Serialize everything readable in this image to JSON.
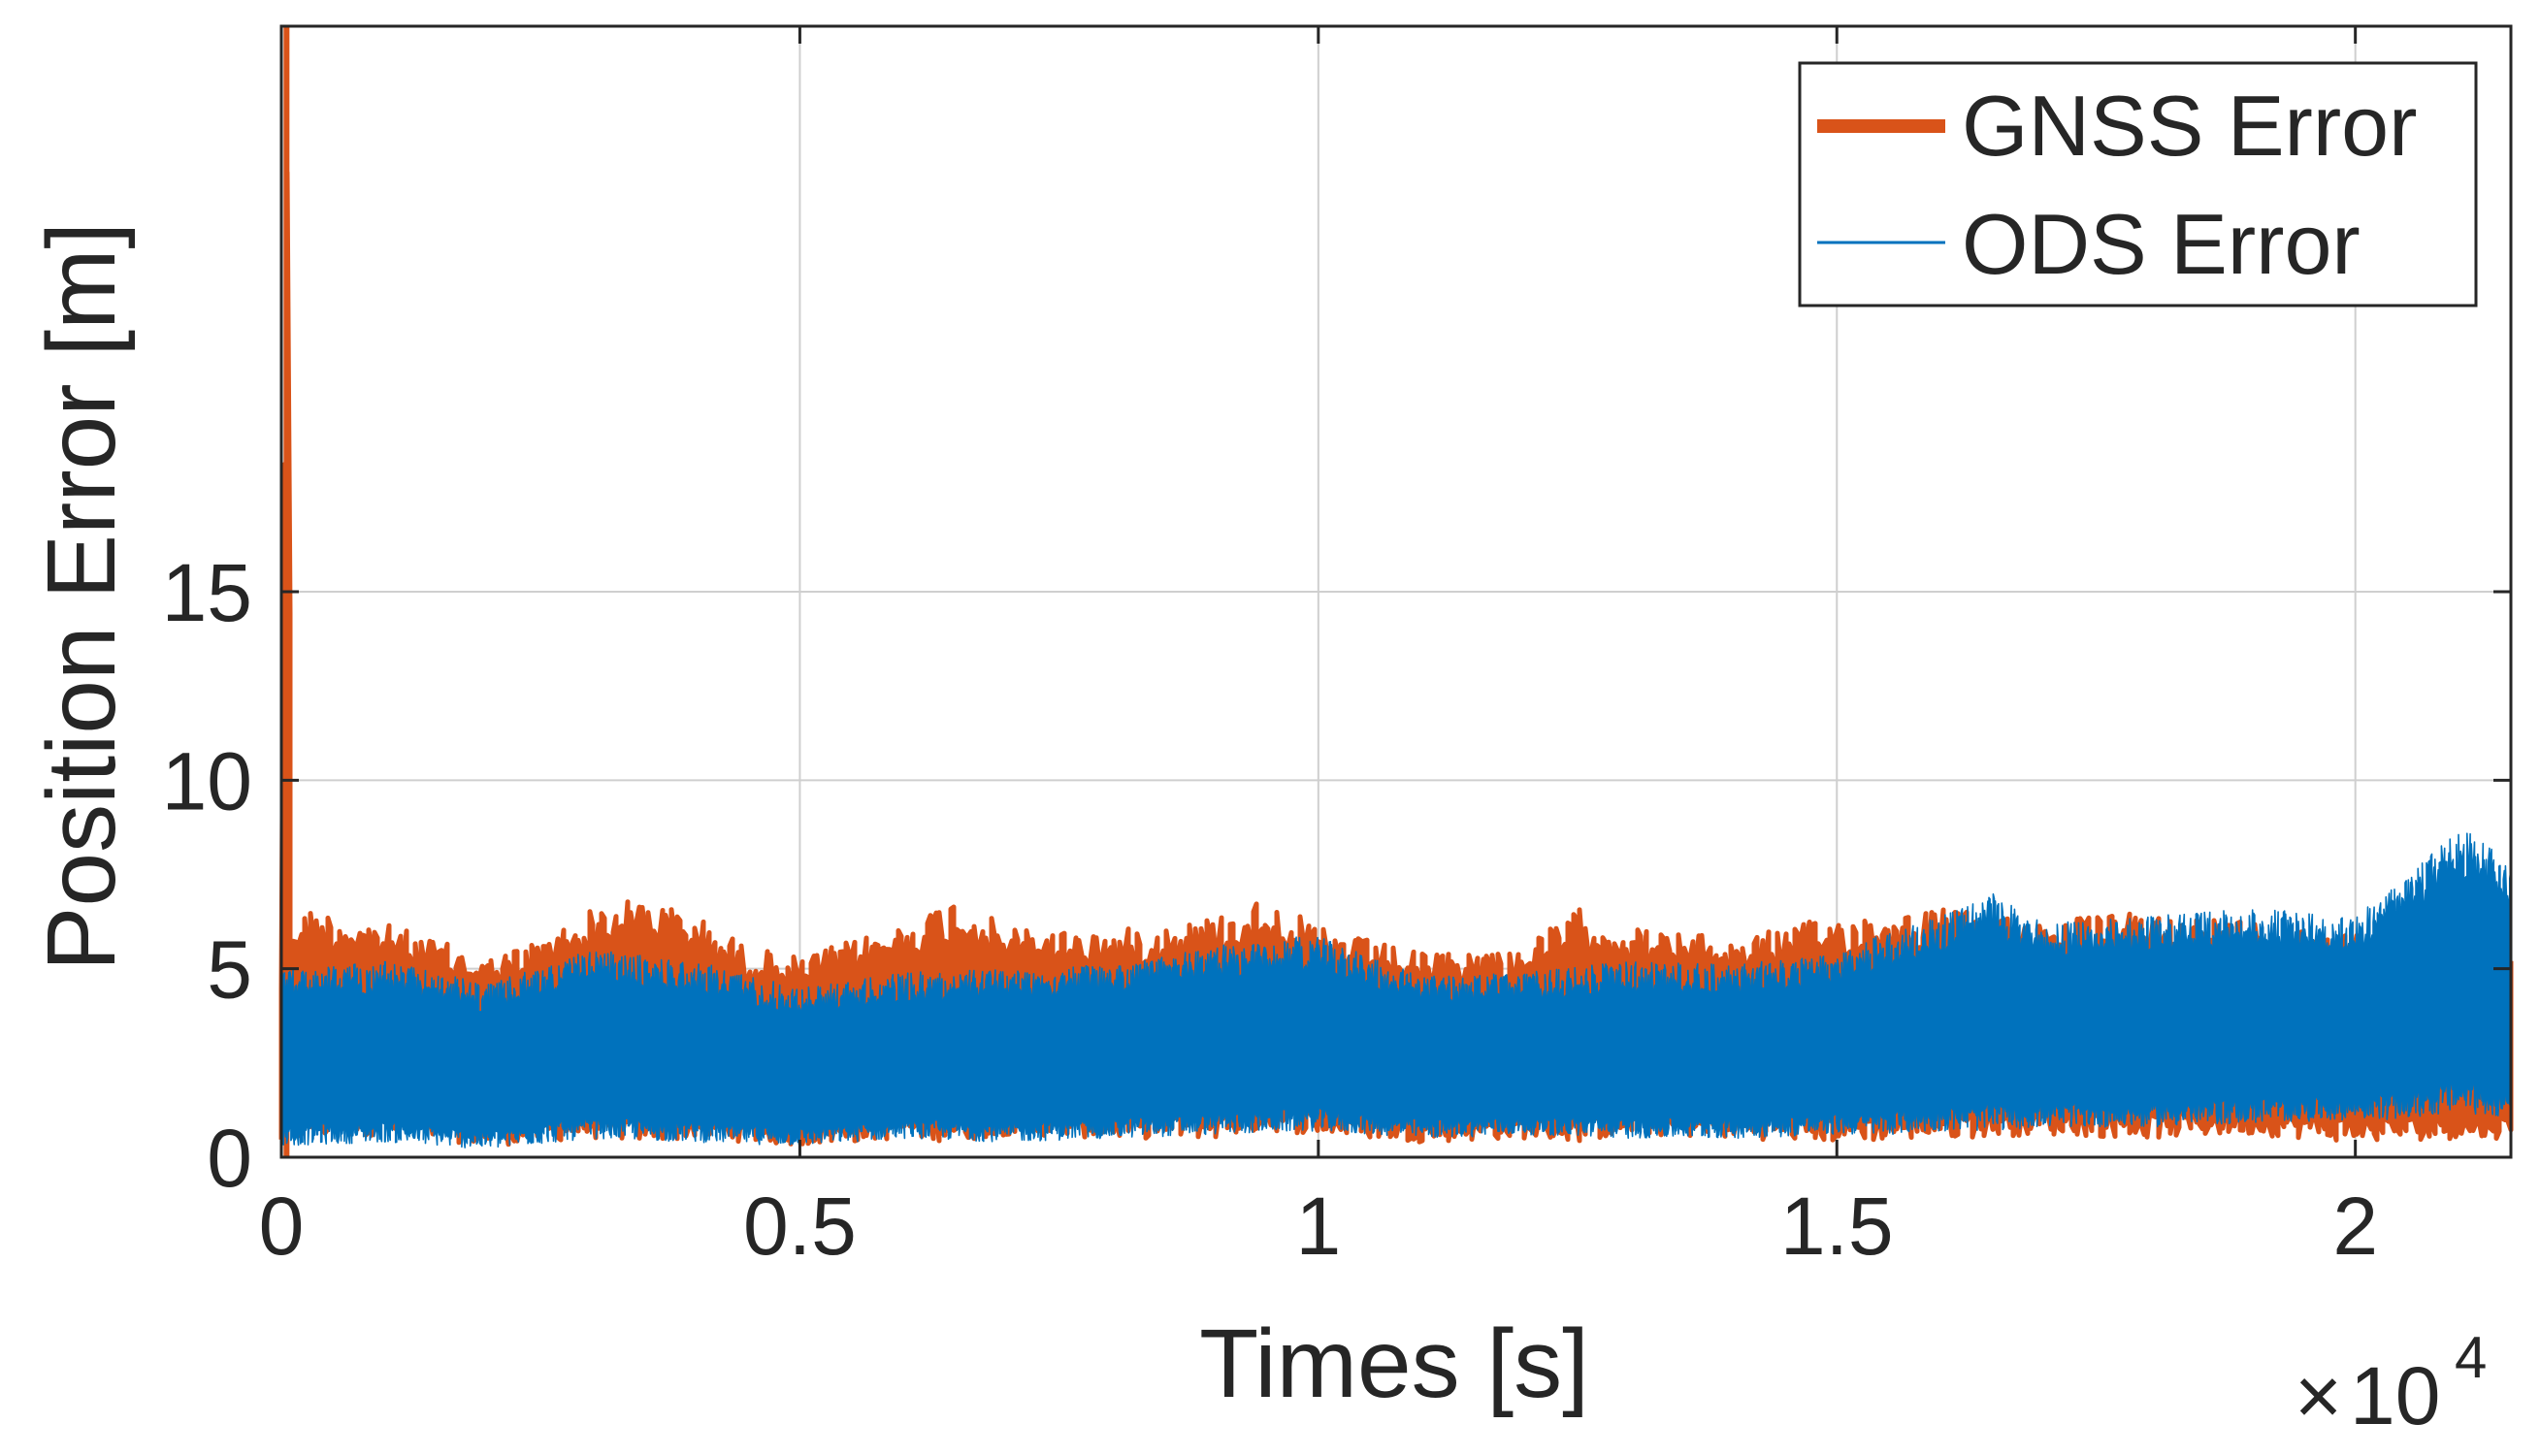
{
  "chart_data": {
    "type": "line",
    "title": "",
    "xlabel": "Times [s]",
    "ylabel": "Position Error [m]",
    "x_multiplier_label": {
      "base": "10",
      "exponent": "4"
    },
    "xlim": [
      0,
      21500
    ],
    "ylim": [
      0,
      30
    ],
    "x_ticks": [
      0,
      5000,
      10000,
      15000,
      20000
    ],
    "x_tick_labels": [
      "0",
      "0.5",
      "1",
      "1.5",
      "2"
    ],
    "y_ticks": [
      0,
      5,
      10,
      15
    ],
    "y_tick_labels": [
      "0",
      "5",
      "10",
      "15"
    ],
    "grid": true,
    "legend_position": "top-right",
    "series": [
      {
        "name": "GNSS Error",
        "color": "#D95319",
        "line_style": "thick",
        "x": [
          0,
          50,
          100,
          300,
          1000,
          2000,
          2500,
          3000,
          3500,
          4000,
          4500,
          5000,
          6000,
          6500,
          7000,
          8000,
          9000,
          9500,
          10000,
          11000,
          12000,
          12500,
          13000,
          14000,
          15000,
          16000,
          17000,
          18000,
          19000,
          20000,
          21000,
          21500
        ],
        "upper": [
          5,
          33,
          6.5,
          6.6,
          6.2,
          5.3,
          5.8,
          6.6,
          6.9,
          6.4,
          5.6,
          5.3,
          6.2,
          6.9,
          6.1,
          6.0,
          6.4,
          6.9,
          6.1,
          5.4,
          5.6,
          6.6,
          6.1,
          5.8,
          6.4,
          6.6,
          6.3,
          6.5,
          6.3,
          5.9,
          5.4,
          5.6
        ],
        "lower": [
          0.3,
          0.0,
          0.4,
          0.5,
          0.6,
          0.3,
          0.4,
          0.5,
          0.4,
          0.5,
          0.4,
          0.3,
          0.5,
          0.4,
          0.6,
          0.5,
          0.5,
          0.7,
          0.6,
          0.4,
          0.5,
          0.4,
          0.6,
          0.5,
          0.4,
          0.5,
          0.6,
          0.5,
          0.6,
          0.4,
          0.5,
          0.5
        ]
      },
      {
        "name": "ODS Error",
        "color": "#0072BD",
        "line_style": "thin",
        "x": [
          0,
          1000,
          2000,
          3000,
          4000,
          5000,
          6000,
          7000,
          8000,
          9000,
          10000,
          11000,
          12000,
          13000,
          14000,
          15000,
          15500,
          16000,
          16500,
          17000,
          18000,
          19000,
          20000,
          20500,
          21000,
          21500
        ],
        "upper": [
          5.0,
          5.2,
          4.6,
          5.5,
          5.2,
          4.5,
          4.9,
          5.0,
          5.1,
          5.6,
          5.9,
          4.8,
          4.9,
          5.2,
          5.1,
          5.4,
          6.0,
          6.4,
          7.0,
          6.2,
          6.4,
          6.6,
          6.4,
          7.4,
          8.8,
          7.8
        ],
        "lower": [
          0.3,
          0.4,
          0.2,
          0.5,
          0.4,
          0.3,
          0.5,
          0.4,
          0.5,
          0.6,
          0.7,
          0.5,
          0.6,
          0.5,
          0.5,
          0.6,
          0.6,
          0.7,
          0.7,
          0.8,
          0.8,
          0.9,
          1.0,
          1.0,
          1.2,
          1.0
        ]
      }
    ]
  }
}
